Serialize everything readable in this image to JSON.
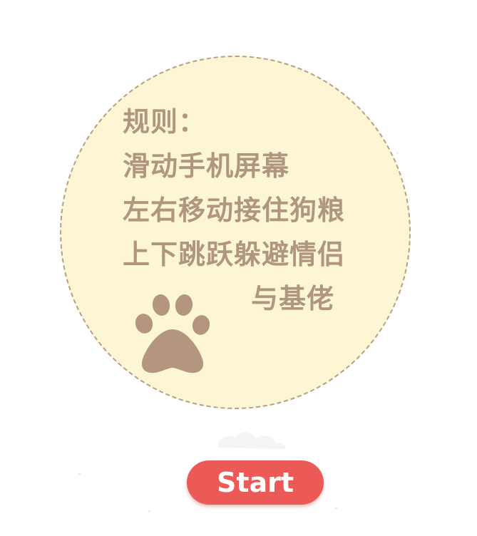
{
  "rules": {
    "title": "规则：",
    "line1": "滑动手机屏幕",
    "line2": "左右移动接住狗粮",
    "line3": "上下跳跃躲避情侣",
    "line4": "与基佬"
  },
  "start_button": {
    "label": "Start"
  },
  "colors": {
    "panel": "#fdf6d4",
    "text": "#b09681",
    "paw": "#b39580",
    "button": "#ec5a57"
  },
  "icons": {
    "paw": "paw-print-icon"
  }
}
